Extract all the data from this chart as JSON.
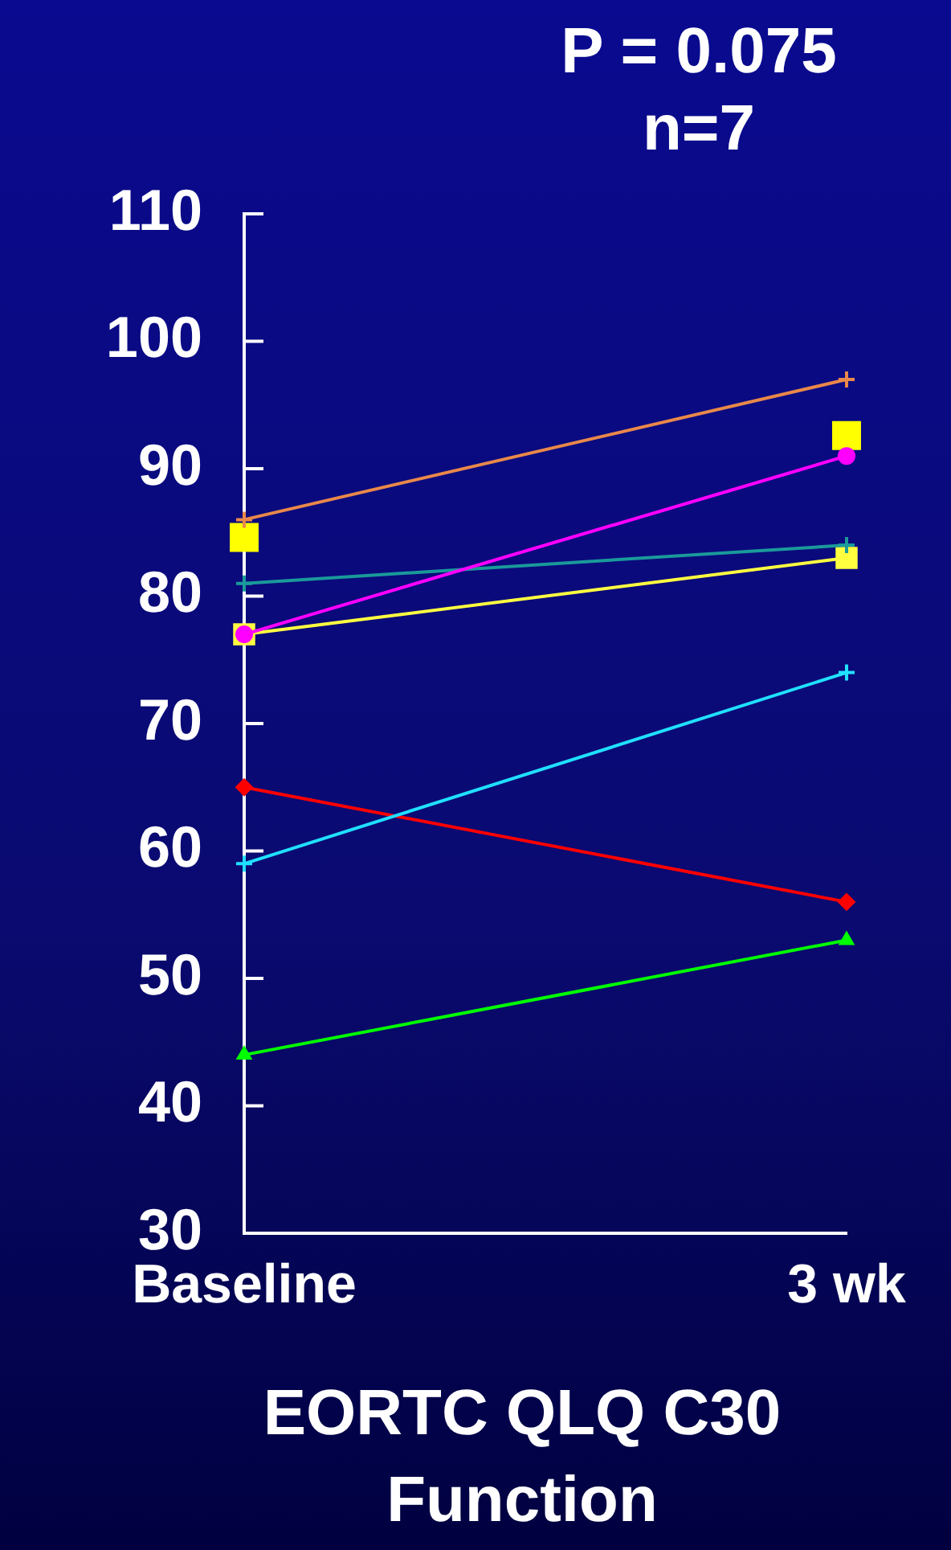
{
  "chart_data": {
    "type": "line",
    "title": "P = 0.075",
    "subtitle": "n=7",
    "xlabel": "EORTC QLQ C30 Function",
    "categories": [
      "Baseline",
      "3 wk"
    ],
    "ylim": [
      30,
      110
    ],
    "yticks": [
      30,
      40,
      50,
      60,
      70,
      80,
      90,
      100,
      110
    ],
    "grid": false,
    "legend": false,
    "series": [
      {
        "color": "#e8884a",
        "marker": "cross",
        "values": [
          86,
          97
        ]
      },
      {
        "color": "#ff00ff",
        "marker": "circle",
        "values": [
          77,
          91
        ]
      },
      {
        "color": "#1a9a9a",
        "marker": "cross",
        "values": [
          81,
          84
        ]
      },
      {
        "color": "#ffff40",
        "marker": "square",
        "values": [
          77,
          83
        ]
      },
      {
        "color": "#20e0ff",
        "marker": "cross",
        "values": [
          59,
          74
        ]
      },
      {
        "color": "#ff0000",
        "marker": "diamond",
        "values": [
          65,
          56
        ]
      },
      {
        "color": "#00ff00",
        "marker": "triangle",
        "values": [
          44,
          53
        ]
      },
      {
        "type": "scatter",
        "color": "#ffff00",
        "marker": "square",
        "values": [
          84.6,
          92.6
        ]
      }
    ]
  }
}
